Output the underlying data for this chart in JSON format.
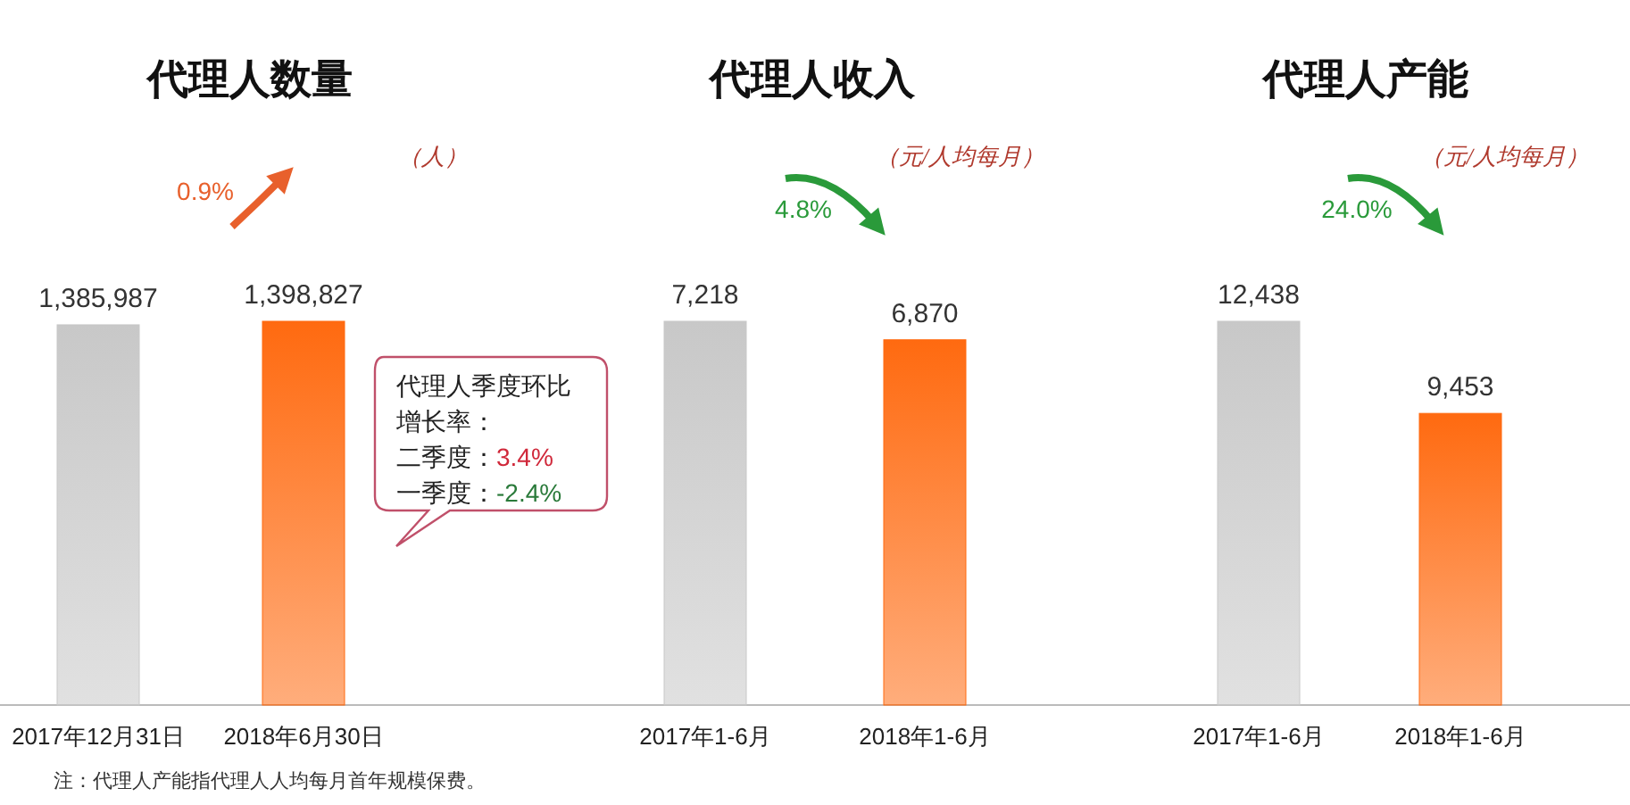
{
  "chart_data": [
    {
      "type": "bar",
      "title": "代理人数量",
      "subtitle": "（人）",
      "categories": [
        "2017年12月31日",
        "2018年6月30日"
      ],
      "values": [
        1385987,
        1398827
      ],
      "colors": [
        "#c8c8c8",
        "#ff6a10"
      ],
      "data_labels": true,
      "value_labels": [
        "1,385,987",
        "1,398,827"
      ],
      "annotations": [
        "0.9%",
        "代理人季度环比增长率：",
        "二季度：3.4%",
        "一季度：-2.4%"
      ]
    },
    {
      "type": "bar",
      "title": "代理人收入",
      "subtitle": "（元/人均每月）",
      "categories": [
        "2017年1-6月",
        "2018年1-6月"
      ],
      "values": [
        7218,
        6870
      ],
      "colors": [
        "#c8c8c8",
        "#ff6a10"
      ],
      "data_labels": true,
      "value_labels": [
        "7,218",
        "6,870"
      ],
      "annotations": [
        "4.8%"
      ]
    },
    {
      "type": "bar",
      "title": "代理人产能",
      "subtitle": "（元/人均每月）",
      "categories": [
        "2017年1-6月",
        "2018年1-6月"
      ],
      "values": [
        12438,
        9453
      ],
      "colors": [
        "#c8c8c8",
        "#ff6a10"
      ],
      "data_labels": true,
      "value_labels": [
        "12,438",
        "9,453"
      ],
      "annotations": [
        "24.0%",
        "注：代理人产能指代理人人均每月首年规模保费。"
      ]
    }
  ]
}
